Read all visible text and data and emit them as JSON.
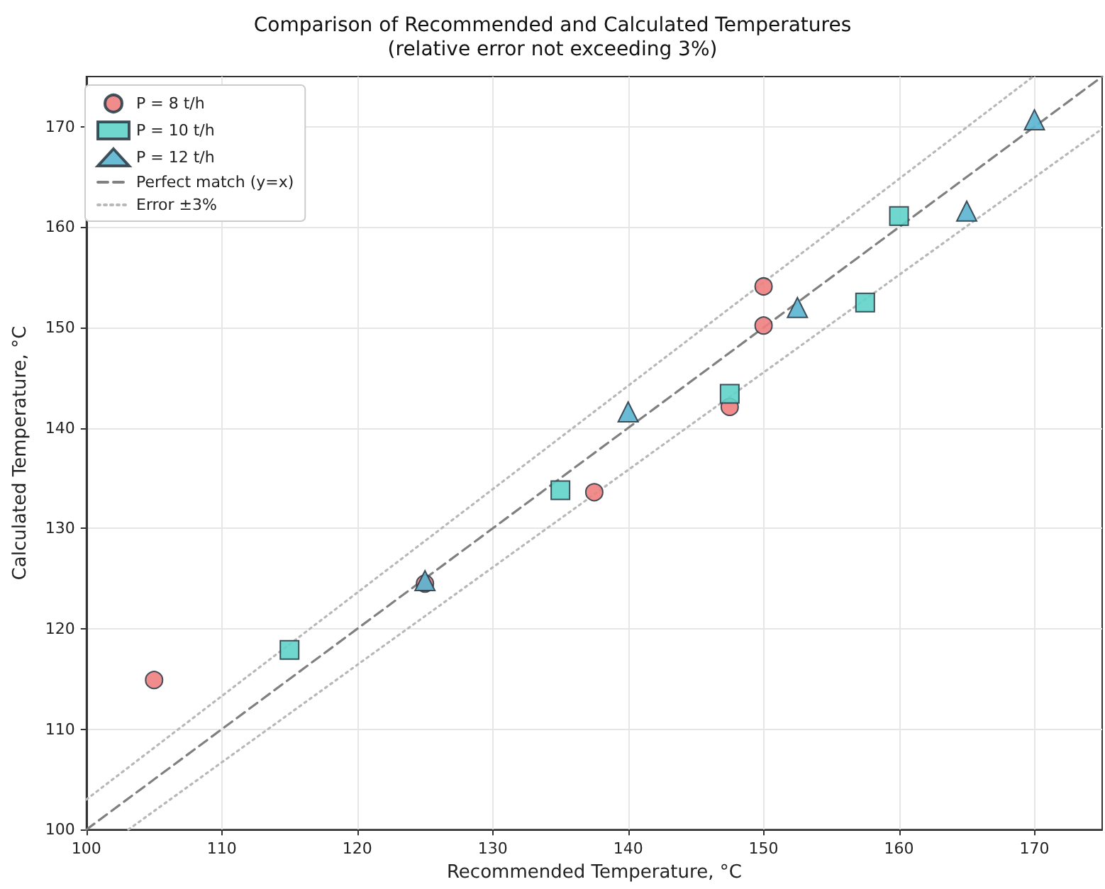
{
  "chart_data": {
    "type": "scatter",
    "title": "Comparison of Recommended and Calculated Temperatures",
    "subtitle": "(relative error not exceeding 3%)",
    "xlabel": "Recommended Temperature, °C",
    "ylabel": "Calculated Temperature, °C",
    "xlim": [
      100,
      175
    ],
    "ylim": [
      100,
      175
    ],
    "xticks": [
      100,
      110,
      120,
      130,
      140,
      150,
      160,
      170
    ],
    "yticks": [
      100,
      110,
      120,
      130,
      140,
      150,
      160,
      170
    ],
    "grid": true,
    "legend": "top left",
    "series": [
      {
        "name": "P = 8 t/h",
        "color": "#f08080",
        "marker": "circle",
        "x": [
          105,
          125,
          137.5,
          147.5,
          150,
          150
        ],
        "values": [
          114.9,
          124.5,
          133.6,
          142.1,
          150.2,
          154.1
        ]
      },
      {
        "name": "P = 10 t/h",
        "color": "#5fd3c8",
        "marker": "square",
        "x": [
          115,
          135,
          147.5,
          157.5,
          160
        ],
        "values": [
          117.9,
          133.8,
          143.4,
          152.5,
          161.1
        ]
      },
      {
        "name": "P = 12 t/h",
        "color": "#5ab4d0",
        "marker": "triangle",
        "x": [
          125,
          140,
          152.5,
          165,
          170
        ],
        "values": [
          124.8,
          141.6,
          152,
          161.6,
          170.7
        ]
      },
      {
        "name": "Perfect match (y=x)",
        "type": "line",
        "color": "#808080",
        "marker": "none",
        "line_style": "dashed",
        "x": [
          100,
          175
        ],
        "values": [
          100,
          175
        ]
      },
      {
        "name": "Error ±3%",
        "type": "line",
        "color": "#b8b8b8",
        "marker": "none",
        "line_style": "dotted",
        "x": [
          100,
          169.9
        ],
        "values": [
          103,
          175
        ]
      },
      {
        "type": "line",
        "color": "#b8b8b8",
        "marker": "none",
        "line_style": "dotted",
        "x": [
          103.1,
          175
        ],
        "values": [
          100,
          169.8
        ]
      }
    ]
  }
}
